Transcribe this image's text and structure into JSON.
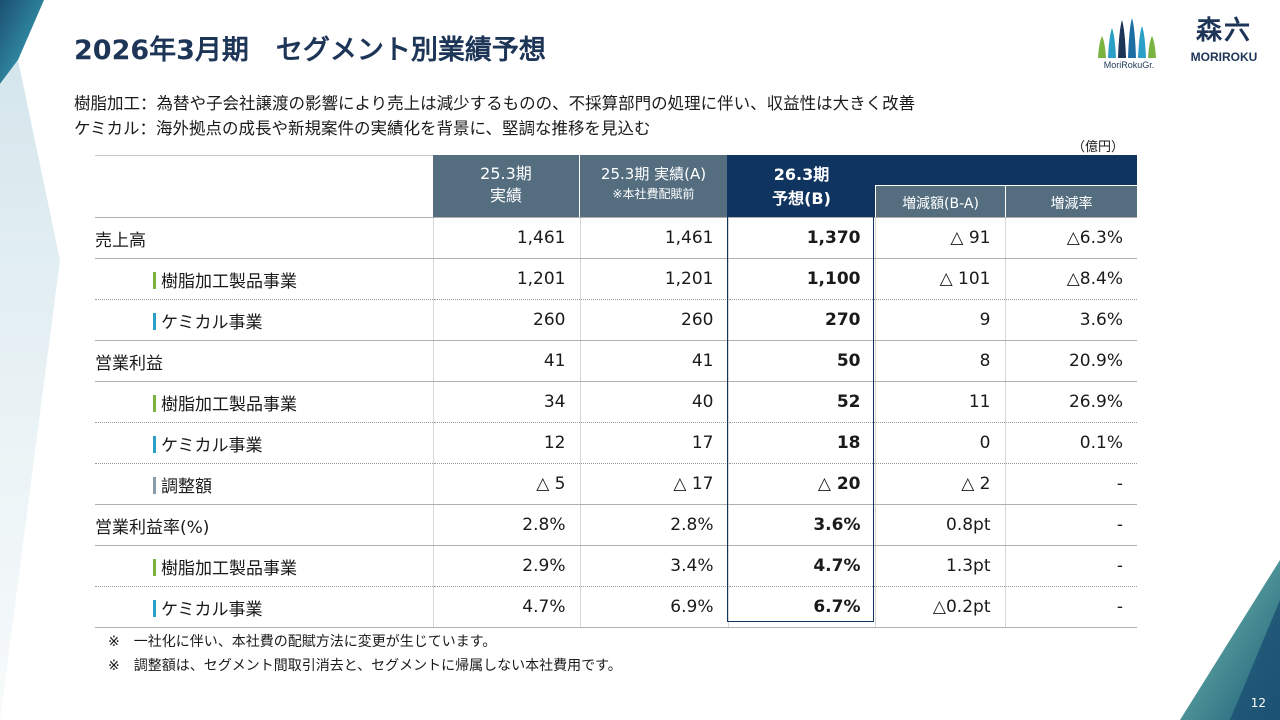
{
  "header": {
    "title": "2026年3月期　セグメント別業績予想",
    "logo_group_text": "MoriRokuGr.",
    "logo_kanji": "森六",
    "logo_roman": "MORIROKU"
  },
  "subtitles": [
    "樹脂加工：為替や子会社譲渡の影響により売上は減少するものの、不採算部門の処理に伴い、収益性は大きく改善",
    "ケミカル：海外拠点の成長や新規案件の実績化を背景に、堅調な推移を見込む"
  ],
  "unit": "（億円）",
  "table": {
    "headers": {
      "col1_line1": "25.3期",
      "col1_line2": "実績",
      "col2_line1": "25.3期 実績(A)",
      "col2_line2": "※本社費配賦前",
      "col3_line1": "26.3期",
      "col3_line2": "予想(B)",
      "col4": "増減額(B-A)",
      "col5": "増減率"
    },
    "rows": [
      {
        "label": "売上高",
        "indent": false,
        "bar": "",
        "v1": "1,461",
        "v2": "1,461",
        "v3": "1,370",
        "v4": "△ 91",
        "v5": "△6.3%"
      },
      {
        "label": "樹脂加工製品事業",
        "indent": true,
        "bar": "green",
        "v1": "1,201",
        "v2": "1,201",
        "v3": "1,100",
        "v4": "△ 101",
        "v5": "△8.4%"
      },
      {
        "label": "ケミカル事業",
        "indent": true,
        "bar": "blue",
        "v1": "260",
        "v2": "260",
        "v3": "270",
        "v4": "9",
        "v5": "3.6%"
      },
      {
        "label": "営業利益",
        "indent": false,
        "bar": "",
        "v1": "41",
        "v2": "41",
        "v3": "50",
        "v4": "8",
        "v5": "20.9%"
      },
      {
        "label": "樹脂加工製品事業",
        "indent": true,
        "bar": "green",
        "v1": "34",
        "v2": "40",
        "v3": "52",
        "v4": "11",
        "v5": "26.9%"
      },
      {
        "label": "ケミカル事業",
        "indent": true,
        "bar": "blue",
        "v1": "12",
        "v2": "17",
        "v3": "18",
        "v4": "0",
        "v5": "0.1%"
      },
      {
        "label": "調整額",
        "indent": true,
        "bar": "gray",
        "v1": "△ 5",
        "v2": "△ 17",
        "v3": "△ 20",
        "v4": "△ 2",
        "v5": "-"
      },
      {
        "label": "営業利益率(%)",
        "indent": false,
        "bar": "",
        "v1": "2.8%",
        "v2": "2.8%",
        "v3": "3.6%",
        "v4": "0.8pt",
        "v5": "-"
      },
      {
        "label": "樹脂加工製品事業",
        "indent": true,
        "bar": "green",
        "v1": "2.9%",
        "v2": "3.4%",
        "v3": "4.7%",
        "v4": "1.3pt",
        "v5": "-"
      },
      {
        "label": "ケミカル事業",
        "indent": true,
        "bar": "blue",
        "v1": "4.7%",
        "v2": "6.9%",
        "v3": "6.7%",
        "v4": "△0.2pt",
        "v5": "-"
      }
    ]
  },
  "footnotes": [
    "※　一社化に伴い、本社費の配賦方法に変更が生じています。",
    "※　調整額は、セグメント間取引消去と、セグメントに帰属しない本社費用です。"
  ],
  "page_number": "12",
  "colors": {
    "navy": "#0f3460",
    "slate": "#546e80",
    "accent_green": "#7bb341",
    "accent_blue": "#2aa0c7"
  }
}
